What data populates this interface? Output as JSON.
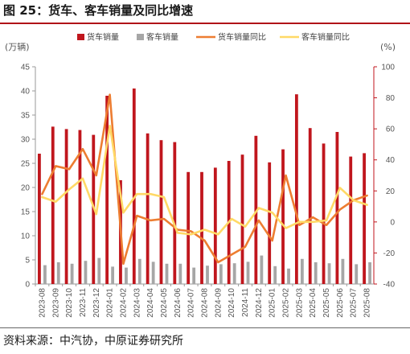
{
  "figure_title": "图 25：货车、客车销量及同比增速",
  "source": "资料来源：中汽协，中原证券研究所",
  "chart_data": {
    "type": "bar",
    "left_unit": "(万辆)",
    "right_unit": "(%)",
    "categories": [
      "2023-08",
      "2023-09",
      "2023-10",
      "2023-11",
      "2023-12",
      "2024-01",
      "2024-02",
      "2024-03",
      "2024-04",
      "2024-05",
      "2024-06",
      "2024-07",
      "2024-08",
      "2024-09",
      "2024-10",
      "2024-11",
      "2024-12",
      "2025-01",
      "2025-02",
      "2025-03",
      "2025-04",
      "2025-05",
      "2025-06",
      "2025-07",
      "2025-08"
    ],
    "ylim_left": [
      0,
      45
    ],
    "yticks_left": [
      "0",
      "5",
      "10",
      "15",
      "20",
      "25",
      "30",
      "35",
      "40",
      "45"
    ],
    "ylim_right": [
      -40,
      100
    ],
    "yticks_right": [
      "-40",
      "-20",
      "0",
      "20",
      "40",
      "60",
      "80",
      "100"
    ],
    "series": [
      {
        "name": "货车销量",
        "type": "bar",
        "axis": "left",
        "color": "#c0161d",
        "values": [
          27.0,
          32.6,
          32.1,
          31.9,
          30.9,
          39.0,
          21.5,
          40.5,
          31.2,
          29.8,
          29.4,
          23.2,
          23.2,
          24.1,
          25.5,
          26.8,
          30.7,
          25.2,
          27.9,
          39.3,
          32.3,
          29.1,
          31.5,
          26.4,
          27.1
        ]
      },
      {
        "name": "客车销量",
        "type": "bar",
        "axis": "left",
        "color": "#a6a6a6",
        "values": [
          3.9,
          4.5,
          4.2,
          4.8,
          5.4,
          3.6,
          3.4,
          5.2,
          4.6,
          4.2,
          4.2,
          3.4,
          3.8,
          4.1,
          4.3,
          4.6,
          5.9,
          3.7,
          3.2,
          5.2,
          4.5,
          4.3,
          5.2,
          4.1,
          4.5
        ]
      },
      {
        "name": "货车销量同比",
        "type": "line",
        "axis": "right",
        "color": "#ed7d31",
        "values": [
          18,
          36,
          34,
          47,
          30,
          82,
          -27,
          4,
          1,
          2,
          -5,
          -6,
          -12,
          -26,
          -21,
          -16,
          1,
          -12,
          30,
          -2,
          3,
          -2,
          8,
          14,
          17
        ]
      },
      {
        "name": "客车销量同比",
        "type": "line",
        "axis": "right",
        "color": "#ffd966",
        "values": [
          16,
          13,
          21,
          28,
          5,
          62,
          6,
          18,
          18,
          16,
          -7,
          -8,
          -5,
          -8,
          2,
          -3,
          9,
          6,
          -4,
          0,
          0,
          1,
          22,
          14,
          11
        ]
      }
    ]
  }
}
